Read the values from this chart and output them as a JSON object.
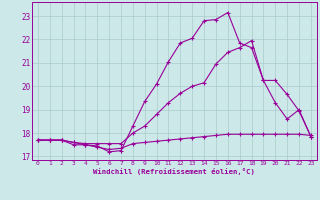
{
  "xlabel": "Windchill (Refroidissement éolien,°C)",
  "bg_color": "#cce8e8",
  "line_color": "#990099",
  "grid_color": "#aacccc",
  "xlim": [
    -0.5,
    23.5
  ],
  "ylim": [
    16.85,
    23.6
  ],
  "yticks": [
    17,
    18,
    19,
    20,
    21,
    22,
    23
  ],
  "xticks": [
    0,
    1,
    2,
    3,
    4,
    5,
    6,
    7,
    8,
    9,
    10,
    11,
    12,
    13,
    14,
    15,
    16,
    17,
    18,
    19,
    20,
    21,
    22,
    23
  ],
  "line1_x": [
    0,
    1,
    2,
    3,
    4,
    5,
    6,
    7,
    8,
    9,
    10,
    11,
    12,
    13,
    14,
    15,
    16,
    17,
    18,
    19,
    20,
    21,
    22,
    23
  ],
  "line1_y": [
    17.7,
    17.7,
    17.7,
    17.5,
    17.5,
    17.4,
    17.3,
    17.35,
    17.55,
    17.6,
    17.65,
    17.7,
    17.75,
    17.8,
    17.85,
    17.9,
    17.95,
    17.95,
    17.95,
    17.95,
    17.95,
    17.95,
    17.95,
    17.9
  ],
  "line2_x": [
    0,
    1,
    2,
    3,
    4,
    5,
    6,
    7,
    8,
    9,
    10,
    11,
    12,
    13,
    14,
    15,
    16,
    17,
    18,
    19,
    20,
    21,
    22,
    23
  ],
  "line2_y": [
    17.7,
    17.7,
    17.7,
    17.6,
    17.55,
    17.55,
    17.55,
    17.55,
    18.0,
    18.3,
    18.8,
    19.3,
    19.7,
    20.0,
    20.15,
    20.95,
    21.45,
    21.65,
    21.95,
    20.25,
    20.25,
    19.65,
    18.95,
    17.85
  ],
  "line3_x": [
    0,
    1,
    2,
    3,
    4,
    5,
    6,
    7,
    8,
    9,
    10,
    11,
    12,
    13,
    14,
    15,
    16,
    17,
    18,
    19,
    20,
    21,
    22,
    23
  ],
  "line3_y": [
    17.7,
    17.7,
    17.7,
    17.6,
    17.5,
    17.45,
    17.2,
    17.25,
    18.3,
    19.35,
    20.1,
    21.05,
    21.85,
    22.05,
    22.8,
    22.85,
    23.15,
    21.85,
    21.65,
    20.25,
    19.3,
    18.6,
    19.0,
    17.85
  ]
}
